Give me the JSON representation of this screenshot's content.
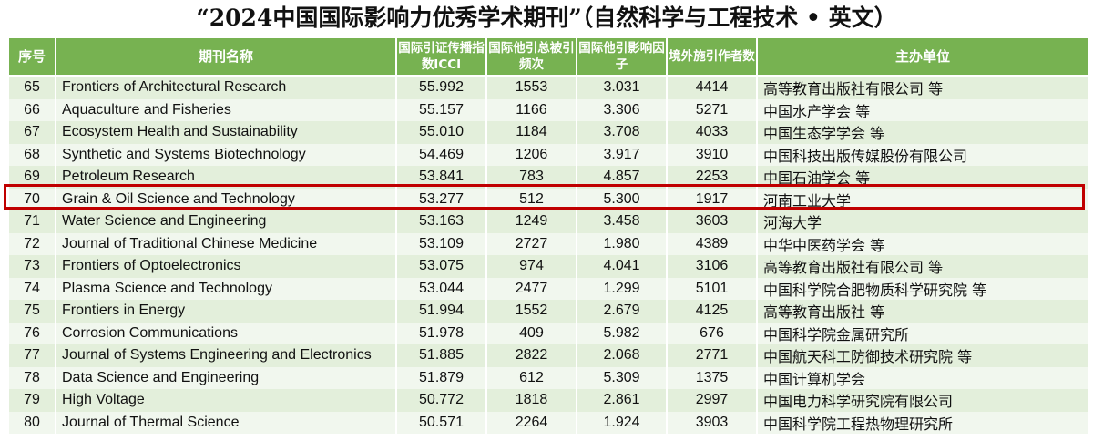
{
  "title": "“2024中国国际影响力优秀学术期刊”（自然科学与工程技术 • 英文）",
  "headers": [
    "序号",
    "期刊名称",
    "国际引证传播指数ICCI",
    "国际他引总被引频次",
    "国际他引影响因子",
    "境外施引作者数",
    "主办单位"
  ],
  "highlight_color": "#c00000",
  "header_color": "#77b251",
  "rows": [
    [
      "65",
      "Frontiers of Architectural Research",
      "55.992",
      "1553",
      "3.031",
      "4414",
      "高等教育出版社有限公司 等"
    ],
    [
      "66",
      "Aquaculture and Fisheries",
      "55.157",
      "1166",
      "3.306",
      "5271",
      "中国水产学会 等"
    ],
    [
      "67",
      "Ecosystem Health and Sustainability",
      "55.010",
      "1184",
      "3.708",
      "4033",
      "中国生态学学会 等"
    ],
    [
      "68",
      "Synthetic and Systems Biotechnology",
      "54.469",
      "1206",
      "3.917",
      "3910",
      "中国科技出版传媒股份有限公司"
    ],
    [
      "69",
      "Petroleum Research",
      "53.841",
      "783",
      "4.857",
      "2253",
      "中国石油学会 等"
    ],
    [
      "70",
      "Grain & Oil Science and Technology",
      "53.277",
      "512",
      "5.300",
      "1917",
      "河南工业大学"
    ],
    [
      "71",
      "Water Science and Engineering",
      "53.163",
      "1249",
      "3.458",
      "3603",
      "河海大学"
    ],
    [
      "72",
      "Journal of Traditional Chinese Medicine",
      "53.109",
      "2727",
      "1.980",
      "4389",
      "中华中医药学会 等"
    ],
    [
      "73",
      "Frontiers of Optoelectronics",
      "53.075",
      "974",
      "4.041",
      "3106",
      "高等教育出版社有限公司 等"
    ],
    [
      "74",
      "Plasma Science and Technology",
      "53.044",
      "2477",
      "1.299",
      "5101",
      "中国科学院合肥物质科学研究院 等"
    ],
    [
      "75",
      "Frontiers in Energy",
      "51.994",
      "1552",
      "2.679",
      "4125",
      "高等教育出版社 等"
    ],
    [
      "76",
      "Corrosion Communications",
      "51.978",
      "409",
      "5.982",
      "676",
      "中国科学院金属研究所"
    ],
    [
      "77",
      "Journal of Systems Engineering and Electronics",
      "51.885",
      "2822",
      "2.068",
      "2771",
      "中国航天科工防御技术研究院 等"
    ],
    [
      "78",
      "Data Science and Engineering",
      "51.879",
      "612",
      "5.309",
      "1375",
      "中国计算机学会"
    ],
    [
      "79",
      "High Voltage",
      "50.772",
      "1818",
      "2.861",
      "2997",
      "中国电力科学研究院有限公司"
    ],
    [
      "80",
      "Journal of Thermal Science",
      "50.571",
      "2264",
      "1.924",
      "3903",
      "中国科学院工程热物理研究所"
    ]
  ]
}
